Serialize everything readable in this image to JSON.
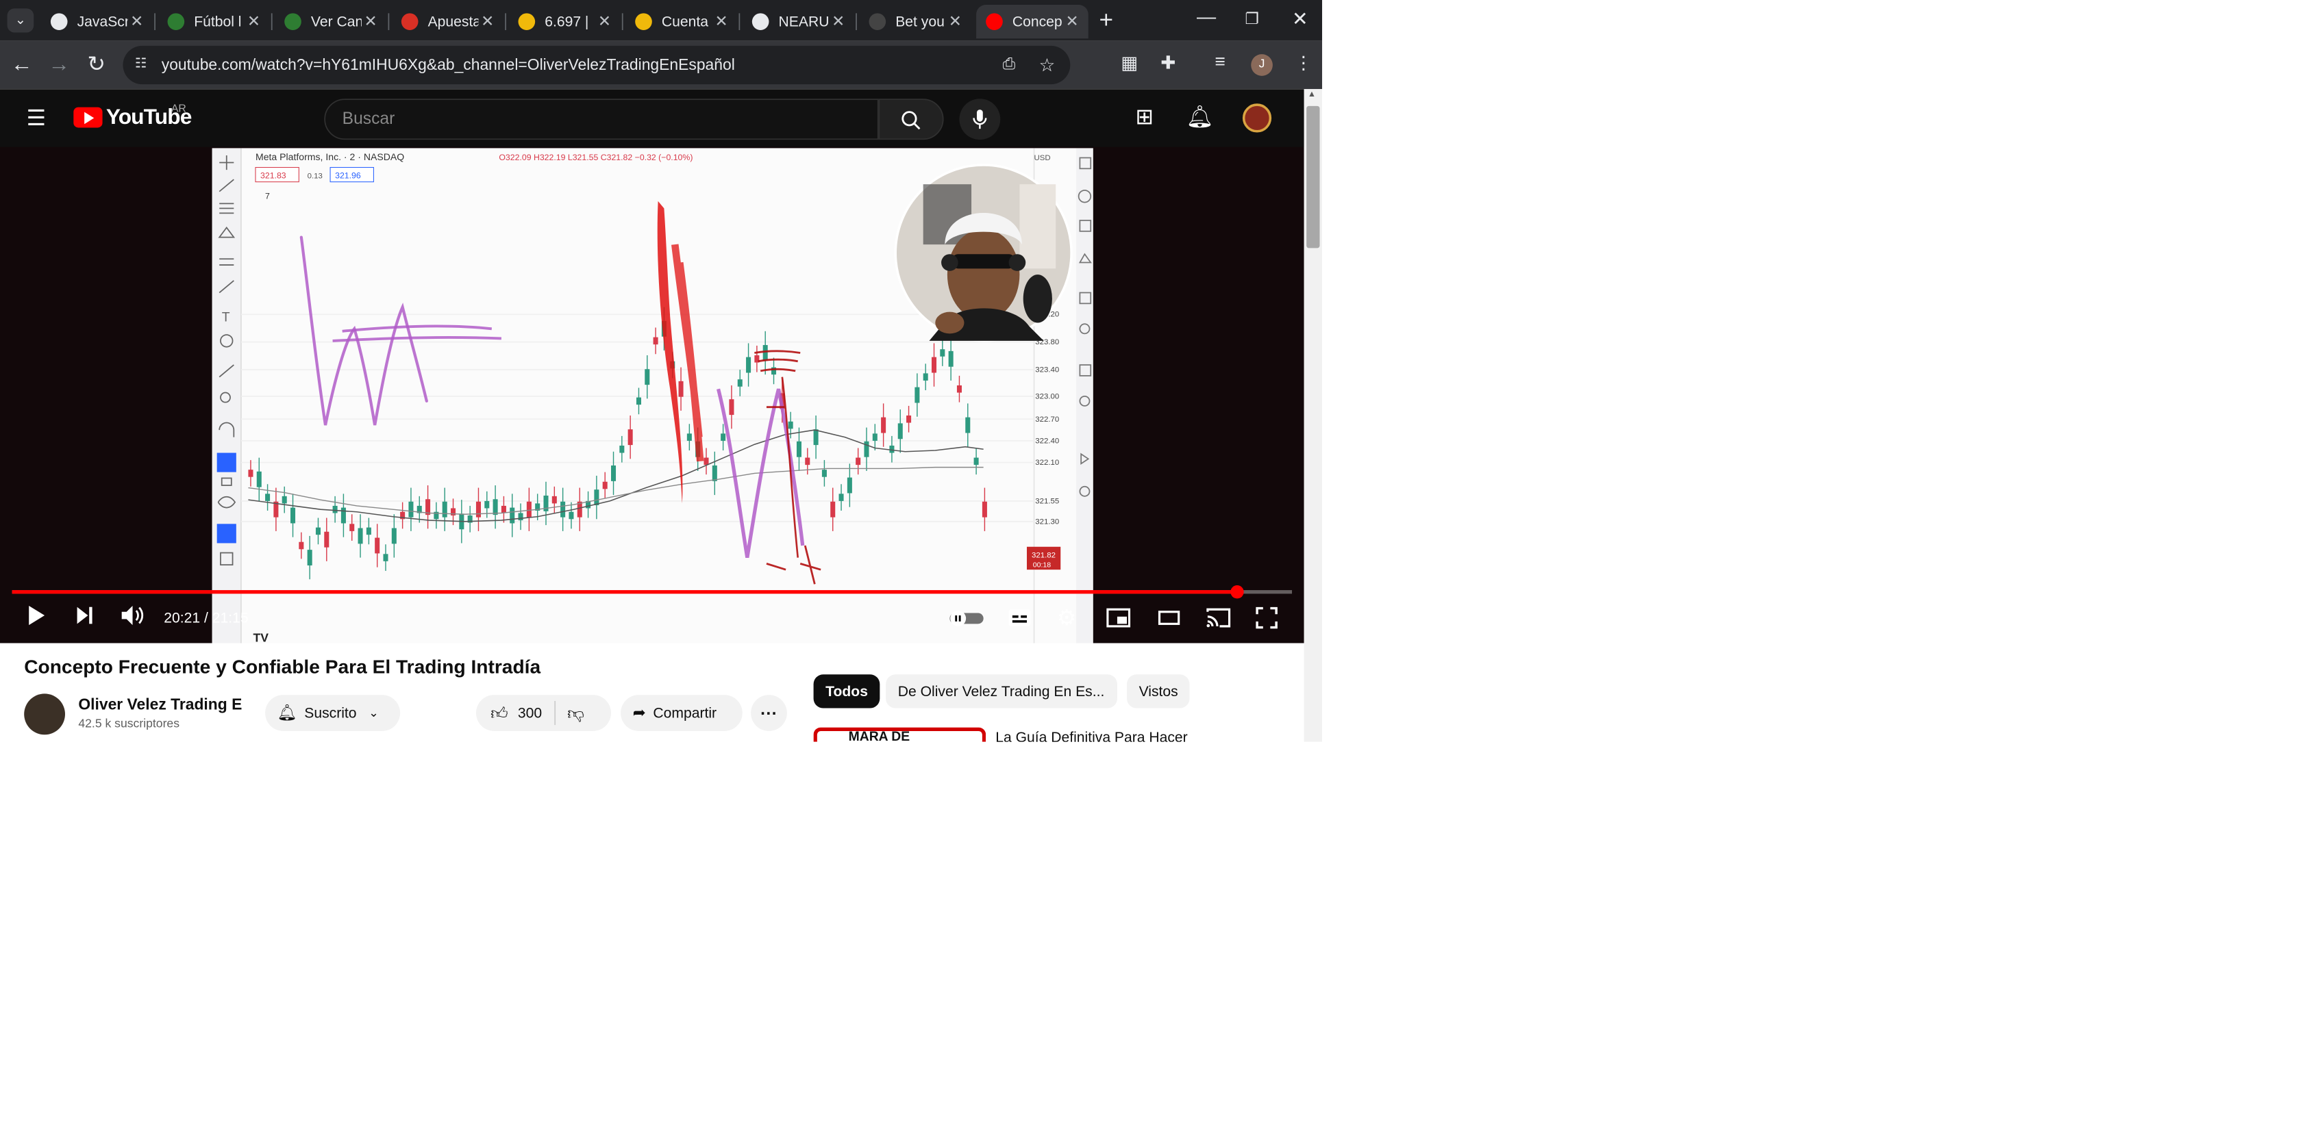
{
  "browser": {
    "tabs": [
      {
        "label": "JavaScri",
        "favicon_color": "#e8eaed"
      },
      {
        "label": "Fútbol l",
        "favicon_color": "#2e7d32"
      },
      {
        "label": "Ver Can",
        "favicon_color": "#2e7d32"
      },
      {
        "label": "Apuesta",
        "favicon_color": "#d93025"
      },
      {
        "label": "6.697 | ",
        "favicon_color": "#f0b90b"
      },
      {
        "label": "Cuenta",
        "favicon_color": "#f0b90b"
      },
      {
        "label": "NEARU",
        "favicon_color": "#e8eaed"
      },
      {
        "label": "Bet you",
        "favicon_color": "#444444"
      },
      {
        "label": "Concep",
        "favicon_color": "#ff0000",
        "active": true
      }
    ],
    "url": "youtube.com/watch?v=hY61mIHU6Xg&ab_channel=OliverVelezTradingEnEspañol",
    "profile_initial": "J"
  },
  "youtube": {
    "logo_text": "YouTube",
    "country": "AR",
    "search_placeholder": "Buscar",
    "video": {
      "chart_header": "Meta Platforms, Inc. · 2 · NASDAQ",
      "ohlc": "O322.09 H322.19 L321.55 C321.82 −0.32 (−0.10%)",
      "bid": "321.83",
      "spread": "0.13",
      "ask": "321.96",
      "indicator_count": "7",
      "currency": "USD",
      "price_ticks": [
        "324.20",
        "323.80",
        "323.40",
        "323.00",
        "322.70",
        "322.40",
        "322.10",
        "321.55",
        "321.30"
      ],
      "last_price": "321.82",
      "last_time": "00:18",
      "progress": 0.957
    },
    "player": {
      "current_time": "20:21",
      "duration": "21:15"
    },
    "title": "Concepto Frecuente y Confiable Para El Trading Intradía",
    "channel": {
      "name": "Oliver Velez Trading E",
      "subscribers": "42.5 k suscriptores",
      "subscribe_label": "Suscrito"
    },
    "actions": {
      "likes": "300",
      "share_label": "Compartir"
    },
    "chips": [
      "Todos",
      "De Oliver Velez Trading En Es...",
      "Vistos"
    ],
    "recommendation": {
      "thumb_text": "MARA DE",
      "title": "La Guía Definitiva Para Hacer"
    },
    "colors": {
      "brand_red": "#ff0000",
      "drawing_purple": "#b05cc8",
      "drawing_red": "#e01010",
      "candle_up": "#2e9a80",
      "candle_down": "#d83a4a"
    }
  }
}
